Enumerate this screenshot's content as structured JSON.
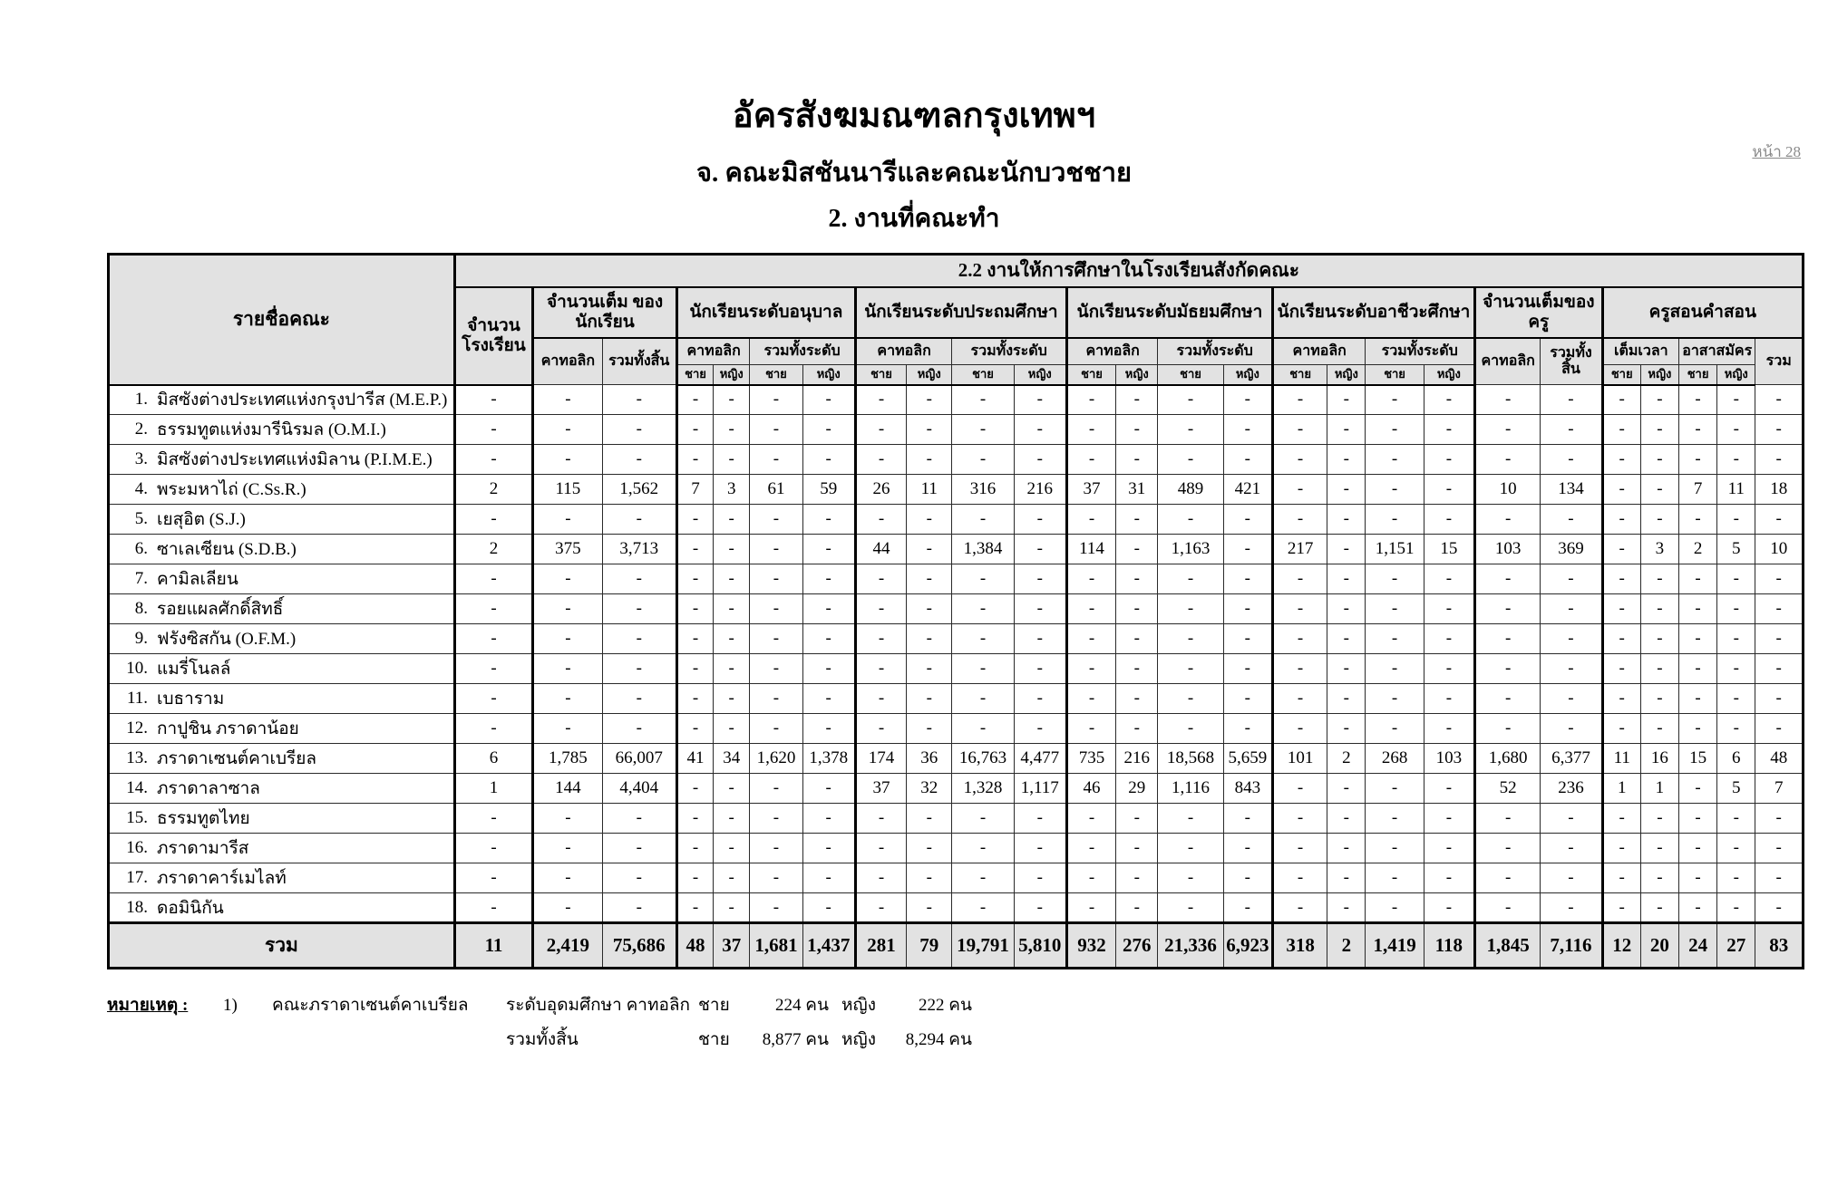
{
  "page": {
    "page_label": "หน้า 28",
    "title": "อัครสังฆมณฑลกรุงเทพฯ",
    "subtitle": "จ.  คณะมิสชันนารีและคณะนักบวชชาย",
    "section": "2.  งานที่คณะทำ"
  },
  "table": {
    "span_header": "2.2  งานให้การศึกษาในโรงเรียนสังกัดคณะ",
    "name_header": "รายชื่อคณะ",
    "labels": {
      "school_count": "จำนวน โรงเรียน",
      "student_total": "จำนวนเต็ม ของนักเรียน",
      "kindergarten": "นักเรียนระดับอนุบาล",
      "primary": "นักเรียนระดับประถมศึกษา",
      "secondary": "นักเรียนระดับมัธยมศึกษา",
      "vocational": "นักเรียนระดับอาชีวะศึกษา",
      "teacher_total": "จำนวนเต็มของครู",
      "catechism": "ครูสอนคำสอน",
      "catholic": "คาทอลิก",
      "grand_total": "รวมทั้งสิ้น",
      "level_total": "รวมทั้งระดับ",
      "full_time": "เต็มเวลา",
      "volunteer": "อาสาสมัคร",
      "total": "รวม",
      "male": "ชาย",
      "female": "หญิง"
    },
    "rows": [
      {
        "no": "1.",
        "name": "มิสซังต่างประเทศแห่งกรุงปารีส (M.E.P.)",
        "values": [
          "-",
          "-",
          "-",
          "-",
          "-",
          "-",
          "-",
          "-",
          "-",
          "-",
          "-",
          "-",
          "-",
          "-",
          "-",
          "-",
          "-",
          "-",
          "-",
          "-",
          "-",
          "-",
          "-",
          "-",
          "-",
          "-"
        ]
      },
      {
        "no": "2.",
        "name": "ธรรมทูตแห่งมารีนิรมล (O.M.I.)",
        "values": [
          "-",
          "-",
          "-",
          "-",
          "-",
          "-",
          "-",
          "-",
          "-",
          "-",
          "-",
          "-",
          "-",
          "-",
          "-",
          "-",
          "-",
          "-",
          "-",
          "-",
          "-",
          "-",
          "-",
          "-",
          "-",
          "-"
        ]
      },
      {
        "no": "3.",
        "name": "มิสซังต่างประเทศแห่งมิลาน (P.I.M.E.)",
        "values": [
          "-",
          "-",
          "-",
          "-",
          "-",
          "-",
          "-",
          "-",
          "-",
          "-",
          "-",
          "-",
          "-",
          "-",
          "-",
          "-",
          "-",
          "-",
          "-",
          "-",
          "-",
          "-",
          "-",
          "-",
          "-",
          "-"
        ]
      },
      {
        "no": "4.",
        "name": "พระมหาไถ่ (C.Ss.R.)",
        "values": [
          "2",
          "115",
          "1,562",
          "7",
          "3",
          "61",
          "59",
          "26",
          "11",
          "316",
          "216",
          "37",
          "31",
          "489",
          "421",
          "-",
          "-",
          "-",
          "-",
          "10",
          "134",
          "-",
          "-",
          "7",
          "11",
          "18"
        ]
      },
      {
        "no": "5.",
        "name": "เยสุอิต (S.J.)",
        "values": [
          "-",
          "-",
          "-",
          "-",
          "-",
          "-",
          "-",
          "-",
          "-",
          "-",
          "-",
          "-",
          "-",
          "-",
          "-",
          "-",
          "-",
          "-",
          "-",
          "-",
          "-",
          "-",
          "-",
          "-",
          "-",
          "-"
        ]
      },
      {
        "no": "6.",
        "name": "ซาเลเซียน (S.D.B.)",
        "values": [
          "2",
          "375",
          "3,713",
          "-",
          "-",
          "-",
          "-",
          "44",
          "-",
          "1,384",
          "-",
          "114",
          "-",
          "1,163",
          "-",
          "217",
          "-",
          "1,151",
          "15",
          "103",
          "369",
          "-",
          "3",
          "2",
          "5",
          "10"
        ]
      },
      {
        "no": "7.",
        "name": "คามิลเลียน",
        "values": [
          "-",
          "-",
          "-",
          "-",
          "-",
          "-",
          "-",
          "-",
          "-",
          "-",
          "-",
          "-",
          "-",
          "-",
          "-",
          "-",
          "-",
          "-",
          "-",
          "-",
          "-",
          "-",
          "-",
          "-",
          "-",
          "-"
        ]
      },
      {
        "no": "8.",
        "name": "รอยแผลศักดิ์สิทธิ์",
        "values": [
          "-",
          "-",
          "-",
          "-",
          "-",
          "-",
          "-",
          "-",
          "-",
          "-",
          "-",
          "-",
          "-",
          "-",
          "-",
          "-",
          "-",
          "-",
          "-",
          "-",
          "-",
          "-",
          "-",
          "-",
          "-",
          "-"
        ]
      },
      {
        "no": "9.",
        "name": "ฟรังซิสกัน (O.F.M.)",
        "values": [
          "-",
          "-",
          "-",
          "-",
          "-",
          "-",
          "-",
          "-",
          "-",
          "-",
          "-",
          "-",
          "-",
          "-",
          "-",
          "-",
          "-",
          "-",
          "-",
          "-",
          "-",
          "-",
          "-",
          "-",
          "-",
          "-"
        ]
      },
      {
        "no": "10.",
        "name": "แมรี่โนลล์",
        "values": [
          "-",
          "-",
          "-",
          "-",
          "-",
          "-",
          "-",
          "-",
          "-",
          "-",
          "-",
          "-",
          "-",
          "-",
          "-",
          "-",
          "-",
          "-",
          "-",
          "-",
          "-",
          "-",
          "-",
          "-",
          "-",
          "-"
        ]
      },
      {
        "no": "11.",
        "name": "เบธาราม",
        "values": [
          "-",
          "-",
          "-",
          "-",
          "-",
          "-",
          "-",
          "-",
          "-",
          "-",
          "-",
          "-",
          "-",
          "-",
          "-",
          "-",
          "-",
          "-",
          "-",
          "-",
          "-",
          "-",
          "-",
          "-",
          "-",
          "-"
        ]
      },
      {
        "no": "12.",
        "name": "กาปูชิน ภราดาน้อย",
        "values": [
          "-",
          "-",
          "-",
          "-",
          "-",
          "-",
          "-",
          "-",
          "-",
          "-",
          "-",
          "-",
          "-",
          "-",
          "-",
          "-",
          "-",
          "-",
          "-",
          "-",
          "-",
          "-",
          "-",
          "-",
          "-",
          "-"
        ]
      },
      {
        "no": "13.",
        "name": "ภราดาเซนต์คาเบรียล",
        "values": [
          "6",
          "1,785",
          "66,007",
          "41",
          "34",
          "1,620",
          "1,378",
          "174",
          "36",
          "16,763",
          "4,477",
          "735",
          "216",
          "18,568",
          "5,659",
          "101",
          "2",
          "268",
          "103",
          "1,680",
          "6,377",
          "11",
          "16",
          "15",
          "6",
          "48"
        ]
      },
      {
        "no": "14.",
        "name": "ภราดาลาซาล",
        "values": [
          "1",
          "144",
          "4,404",
          "-",
          "-",
          "-",
          "-",
          "37",
          "32",
          "1,328",
          "1,117",
          "46",
          "29",
          "1,116",
          "843",
          "-",
          "-",
          "-",
          "-",
          "52",
          "236",
          "1",
          "1",
          "-",
          "5",
          "7"
        ]
      },
      {
        "no": "15.",
        "name": "ธรรมทูตไทย",
        "values": [
          "-",
          "-",
          "-",
          "-",
          "-",
          "-",
          "-",
          "-",
          "-",
          "-",
          "-",
          "-",
          "-",
          "-",
          "-",
          "-",
          "-",
          "-",
          "-",
          "-",
          "-",
          "-",
          "-",
          "-",
          "-",
          "-"
        ]
      },
      {
        "no": "16.",
        "name": "ภราดามารีส",
        "values": [
          "-",
          "-",
          "-",
          "-",
          "-",
          "-",
          "-",
          "-",
          "-",
          "-",
          "-",
          "-",
          "-",
          "-",
          "-",
          "-",
          "-",
          "-",
          "-",
          "-",
          "-",
          "-",
          "-",
          "-",
          "-",
          "-"
        ]
      },
      {
        "no": "17.",
        "name": "ภราดาคาร์เมไลท์",
        "values": [
          "-",
          "-",
          "-",
          "-",
          "-",
          "-",
          "-",
          "-",
          "-",
          "-",
          "-",
          "-",
          "-",
          "-",
          "-",
          "-",
          "-",
          "-",
          "-",
          "-",
          "-",
          "-",
          "-",
          "-",
          "-",
          "-"
        ]
      },
      {
        "no": "18.",
        "name": "ดอมินิกัน",
        "values": [
          "-",
          "-",
          "-",
          "-",
          "-",
          "-",
          "-",
          "-",
          "-",
          "-",
          "-",
          "-",
          "-",
          "-",
          "-",
          "-",
          "-",
          "-",
          "-",
          "-",
          "-",
          "-",
          "-",
          "-",
          "-",
          "-"
        ]
      }
    ],
    "total": {
      "name": "รวม",
      "values": [
        "11",
        "2,419",
        "75,686",
        "48",
        "37",
        "1,681",
        "1,437",
        "281",
        "79",
        "19,791",
        "5,810",
        "932",
        "276",
        "21,336",
        "6,923",
        "318",
        "2",
        "1,419",
        "118",
        "1,845",
        "7,116",
        "12",
        "20",
        "24",
        "27",
        "83"
      ]
    }
  },
  "footnote": {
    "label": "หมายเหตุ",
    "colon": " :",
    "no": "1)",
    "org": "คณะภราดาเซนต์คาเบรียล",
    "level1": "ระดับอุดมศึกษา คาทอลิก",
    "male_label": "ชาย",
    "male1": "224 คน",
    "female_label": "หญิง",
    "female1": "222 คน",
    "level2": "รวมทั้งสิ้น",
    "male2": "8,877 คน",
    "female2": "8,294 คน"
  }
}
